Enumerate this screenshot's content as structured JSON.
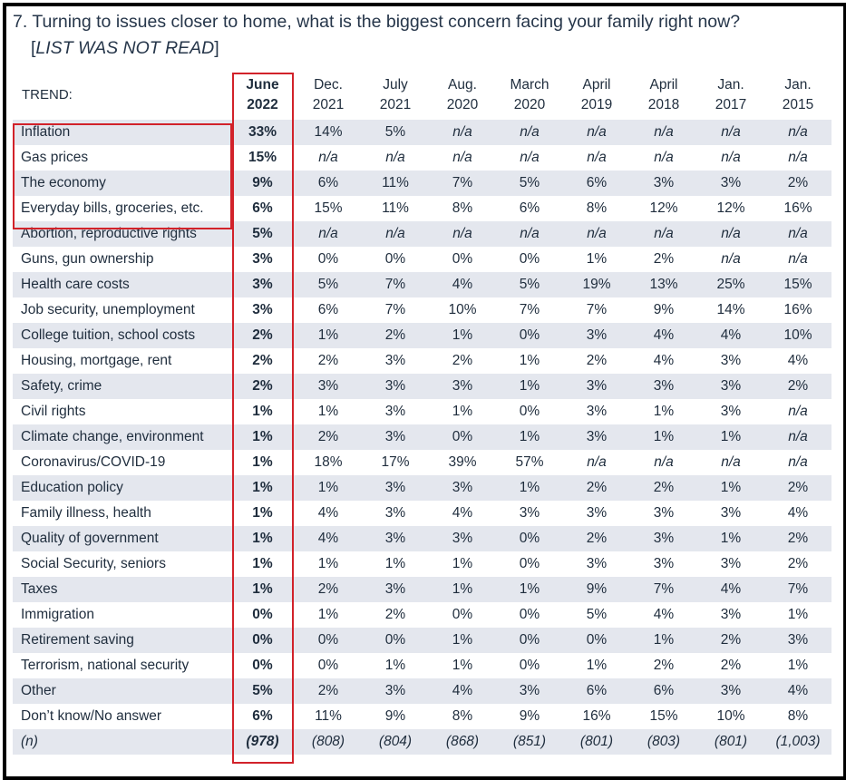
{
  "question": {
    "text": "7. Turning to issues closer to home, what is the biggest concern facing your family right now?",
    "note_open": "[",
    "note": "LIST WAS NOT READ",
    "note_close": "]"
  },
  "table": {
    "trend_label": "TREND:",
    "columns": [
      {
        "line1": "June",
        "line2": "2022"
      },
      {
        "line1": "Dec.",
        "line2": "2021"
      },
      {
        "line1": "July",
        "line2": "2021"
      },
      {
        "line1": "Aug.",
        "line2": "2020"
      },
      {
        "line1": "March",
        "line2": "2020"
      },
      {
        "line1": "April",
        "line2": "2019"
      },
      {
        "line1": "April",
        "line2": "2018"
      },
      {
        "line1": "Jan.",
        "line2": "2017"
      },
      {
        "line1": "Jan.",
        "line2": "2015"
      }
    ],
    "rows": [
      {
        "label": "Inflation",
        "values": [
          "33%",
          "14%",
          "5%",
          "n/a",
          "n/a",
          "n/a",
          "n/a",
          "n/a",
          "n/a"
        ]
      },
      {
        "label": "Gas prices",
        "values": [
          "15%",
          "n/a",
          "n/a",
          "n/a",
          "n/a",
          "n/a",
          "n/a",
          "n/a",
          "n/a"
        ]
      },
      {
        "label": "The economy",
        "values": [
          "9%",
          "6%",
          "11%",
          "7%",
          "5%",
          "6%",
          "3%",
          "3%",
          "2%"
        ]
      },
      {
        "label": "Everyday bills, groceries, etc.",
        "values": [
          "6%",
          "15%",
          "11%",
          "8%",
          "6%",
          "8%",
          "12%",
          "12%",
          "16%"
        ]
      },
      {
        "label": "Abortion, reproductive rights",
        "values": [
          "5%",
          "n/a",
          "n/a",
          "n/a",
          "n/a",
          "n/a",
          "n/a",
          "n/a",
          "n/a"
        ]
      },
      {
        "label": "Guns, gun ownership",
        "values": [
          "3%",
          "0%",
          "0%",
          "0%",
          "0%",
          "1%",
          "2%",
          "n/a",
          "n/a"
        ]
      },
      {
        "label": "Health care costs",
        "values": [
          "3%",
          "5%",
          "7%",
          "4%",
          "5%",
          "19%",
          "13%",
          "25%",
          "15%"
        ]
      },
      {
        "label": "Job security, unemployment",
        "values": [
          "3%",
          "6%",
          "7%",
          "10%",
          "7%",
          "7%",
          "9%",
          "14%",
          "16%"
        ]
      },
      {
        "label": "College tuition, school costs",
        "values": [
          "2%",
          "1%",
          "2%",
          "1%",
          "0%",
          "3%",
          "4%",
          "4%",
          "10%"
        ]
      },
      {
        "label": "Housing, mortgage, rent",
        "values": [
          "2%",
          "2%",
          "3%",
          "2%",
          "1%",
          "2%",
          "4%",
          "3%",
          "4%"
        ]
      },
      {
        "label": "Safety, crime",
        "values": [
          "2%",
          "3%",
          "3%",
          "3%",
          "1%",
          "3%",
          "3%",
          "3%",
          "2%"
        ]
      },
      {
        "label": "Civil rights",
        "values": [
          "1%",
          "1%",
          "3%",
          "1%",
          "0%",
          "3%",
          "1%",
          "3%",
          "n/a"
        ]
      },
      {
        "label": "Climate change, environment",
        "values": [
          "1%",
          "2%",
          "3%",
          "0%",
          "1%",
          "3%",
          "1%",
          "1%",
          "n/a"
        ]
      },
      {
        "label": "Coronavirus/COVID-19",
        "values": [
          "1%",
          "18%",
          "17%",
          "39%",
          "57%",
          "n/a",
          "n/a",
          "n/a",
          "n/a"
        ]
      },
      {
        "label": "Education policy",
        "values": [
          "1%",
          "1%",
          "3%",
          "3%",
          "1%",
          "2%",
          "2%",
          "1%",
          "2%"
        ]
      },
      {
        "label": "Family illness, health",
        "values": [
          "1%",
          "4%",
          "3%",
          "4%",
          "3%",
          "3%",
          "3%",
          "3%",
          "4%"
        ]
      },
      {
        "label": "Quality of government",
        "values": [
          "1%",
          "4%",
          "3%",
          "3%",
          "0%",
          "2%",
          "3%",
          "1%",
          "2%"
        ]
      },
      {
        "label": "Social Security, seniors",
        "values": [
          "1%",
          "1%",
          "1%",
          "1%",
          "0%",
          "3%",
          "3%",
          "3%",
          "2%"
        ]
      },
      {
        "label": "Taxes",
        "values": [
          "1%",
          "2%",
          "3%",
          "1%",
          "1%",
          "9%",
          "7%",
          "4%",
          "7%"
        ]
      },
      {
        "label": "Immigration",
        "values": [
          "0%",
          "1%",
          "2%",
          "0%",
          "0%",
          "5%",
          "4%",
          "3%",
          "1%"
        ]
      },
      {
        "label": "Retirement saving",
        "values": [
          "0%",
          "0%",
          "0%",
          "1%",
          "0%",
          "0%",
          "1%",
          "2%",
          "3%"
        ]
      },
      {
        "label": "Terrorism, national security",
        "values": [
          "0%",
          "0%",
          "1%",
          "1%",
          "0%",
          "1%",
          "2%",
          "2%",
          "1%"
        ]
      },
      {
        "label": "Other",
        "values": [
          "5%",
          "2%",
          "3%",
          "4%",
          "3%",
          "6%",
          "6%",
          "3%",
          "4%"
        ]
      },
      {
        "label": "Don’t know/No answer",
        "values": [
          "6%",
          "11%",
          "9%",
          "8%",
          "9%",
          "16%",
          "15%",
          "10%",
          "8%"
        ]
      }
    ],
    "n_row": {
      "label": "(n)",
      "values": [
        "(978)",
        "(808)",
        "(804)",
        "(868)",
        "(851)",
        "(801)",
        "(803)",
        "(801)",
        "(1,003)"
      ]
    }
  },
  "colors": {
    "highlight": "#d2222a",
    "row_shade": "#e4e7ee",
    "text": "#1f2d3d"
  }
}
